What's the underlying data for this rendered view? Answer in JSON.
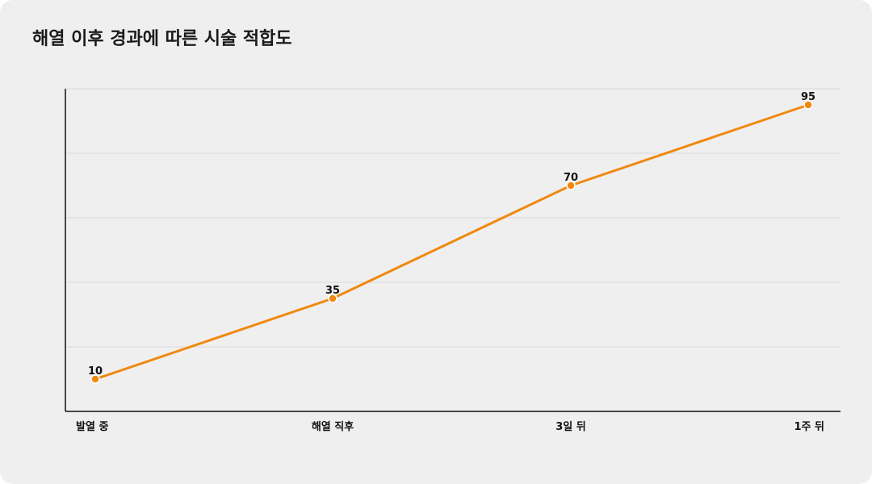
{
  "chart_data": {
    "type": "line",
    "title": "해열 이후 경과에 따른 시술 적합도",
    "categories": [
      "발열 중",
      "해열 직후",
      "3일 뒤",
      "1주 뒤"
    ],
    "series": [
      {
        "values": [
          10,
          35,
          70,
          95
        ],
        "data_labels": [
          "10",
          "35",
          "70",
          "95"
        ]
      }
    ],
    "ylim": [
      0,
      100
    ],
    "y_gridlines": [
      20,
      40,
      60,
      80,
      100
    ],
    "grid": true,
    "xlabel": "",
    "ylabel": "",
    "line_color": "#f0890f",
    "grid_color": "#d9d9db",
    "axis_color": "#111111"
  }
}
